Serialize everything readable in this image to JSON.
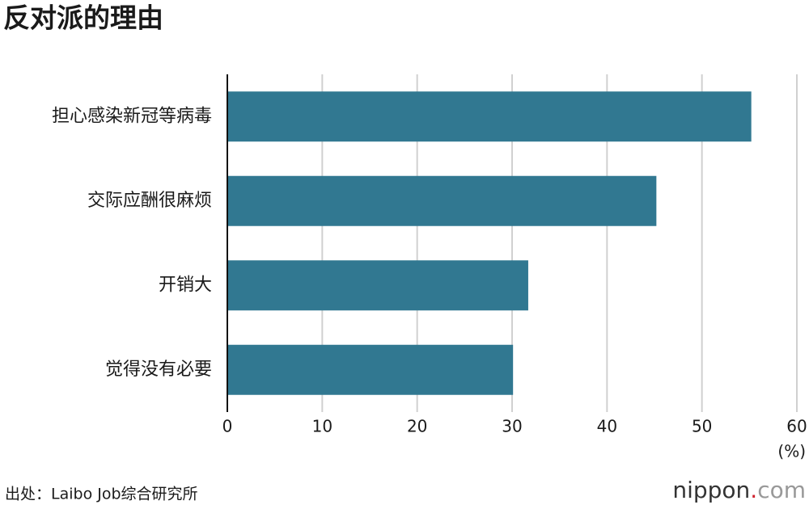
{
  "chart_data": {
    "type": "bar",
    "orientation": "horizontal",
    "title": "反对派的理由",
    "categories": [
      "担心感染新冠等病毒",
      "交际应酬很麻烦",
      "开销大",
      "觉得没有必要"
    ],
    "values": [
      55.2,
      45.2,
      31.7,
      30.1
    ],
    "color": "#317891",
    "xlim": [
      0,
      60
    ],
    "xticks": [
      0,
      10,
      20,
      30,
      40,
      50,
      60
    ],
    "grid": true,
    "unit_label": "(%)",
    "source": "出处：Laibo Job综合研究所",
    "logo": {
      "name": "nippon",
      "dot": ".",
      "suffix": "com"
    }
  }
}
